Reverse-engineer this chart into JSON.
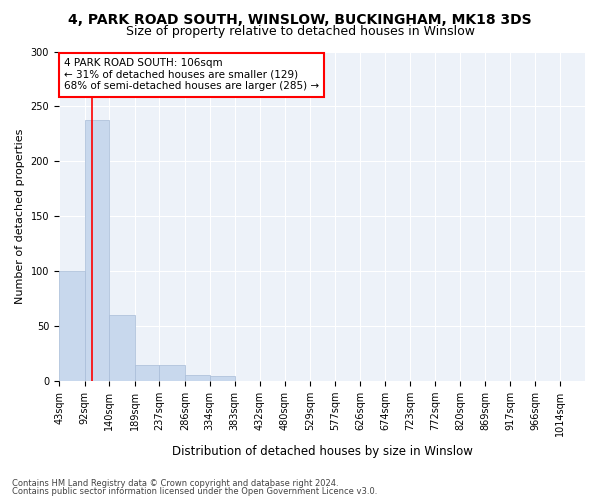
{
  "title1": "4, PARK ROAD SOUTH, WINSLOW, BUCKINGHAM, MK18 3DS",
  "title2": "Size of property relative to detached houses in Winslow",
  "xlabel": "Distribution of detached houses by size in Winslow",
  "ylabel": "Number of detached properties",
  "bin_edges": [
    43,
    92,
    140,
    189,
    237,
    286,
    334,
    383,
    432,
    480,
    529,
    577,
    626,
    674,
    723,
    772,
    820,
    869,
    917,
    966,
    1014
  ],
  "bar_heights": [
    100,
    238,
    60,
    15,
    15,
    6,
    5,
    0,
    0,
    0,
    0,
    0,
    0,
    0,
    0,
    0,
    0,
    0,
    0,
    0
  ],
  "bar_color": "#c8d8ed",
  "bar_edge_color": "#a8bcd8",
  "red_line_x": 106,
  "ylim": [
    0,
    300
  ],
  "yticks": [
    0,
    50,
    100,
    150,
    200,
    250,
    300
  ],
  "annotation_box_text": "4 PARK ROAD SOUTH: 106sqm\n← 31% of detached houses are smaller (129)\n68% of semi-detached houses are larger (285) →",
  "footnote1": "Contains HM Land Registry data © Crown copyright and database right 2024.",
  "footnote2": "Contains public sector information licensed under the Open Government Licence v3.0.",
  "background_color": "#edf2f9",
  "grid_color": "#ffffff",
  "title1_fontsize": 10,
  "title2_fontsize": 9,
  "xlabel_fontsize": 8.5,
  "ylabel_fontsize": 8,
  "tick_fontsize": 7,
  "annot_fontsize": 7.5,
  "footnote_fontsize": 6
}
